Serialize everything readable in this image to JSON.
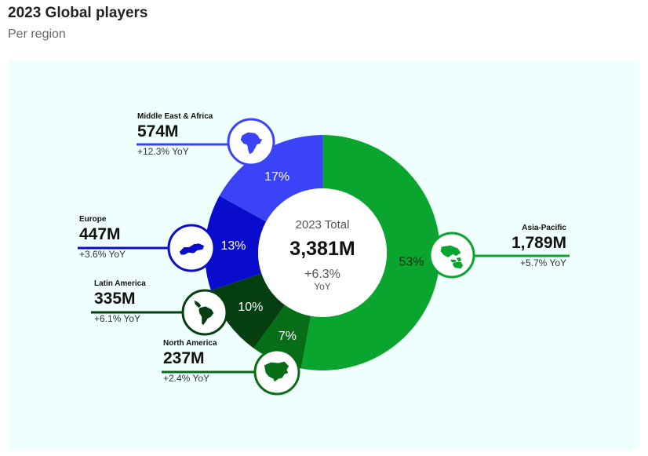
{
  "header": {
    "title": "2023 Global players",
    "subtitle": "Per region"
  },
  "center": {
    "label": "2023 Total",
    "value": "3,381M",
    "change": "+6.3%",
    "change_unit": "YoY"
  },
  "chart_data": {
    "type": "pie",
    "variant": "donut",
    "title": "2023 Global players",
    "subtitle": "Per region",
    "total": 3381,
    "total_label": "3,381M",
    "unit": "M players",
    "series": [
      {
        "name": "Asia-Pacific",
        "value": 1789,
        "value_label": "1,789M",
        "percent": 53,
        "percent_label": "53%",
        "yoy": "+5.7% YoY",
        "color": "#0aa52e",
        "icon": "asia-pacific-map-icon"
      },
      {
        "name": "North America",
        "value": 237,
        "value_label": "237M",
        "percent": 7,
        "percent_label": "7%",
        "yoy": "+2.4% YoY",
        "color": "#066e16",
        "icon": "north-america-map-icon"
      },
      {
        "name": "Latin America",
        "value": 335,
        "value_label": "335M",
        "percent": 10,
        "percent_label": "10%",
        "yoy": "+6.1% YoY",
        "color": "#053f10",
        "icon": "latin-america-map-icon"
      },
      {
        "name": "Europe",
        "value": 447,
        "value_label": "447M",
        "percent": 13,
        "percent_label": "13%",
        "yoy": "+3.6% YoY",
        "color": "#0a0ccb",
        "icon": "europe-map-icon"
      },
      {
        "name": "Middle East & Africa",
        "value": 574,
        "value_label": "574M",
        "percent": 17,
        "percent_label": "17%",
        "yoy": "+12.3% YoY",
        "color": "#3b43f6",
        "icon": "middle-east-africa-map-icon"
      }
    ]
  }
}
